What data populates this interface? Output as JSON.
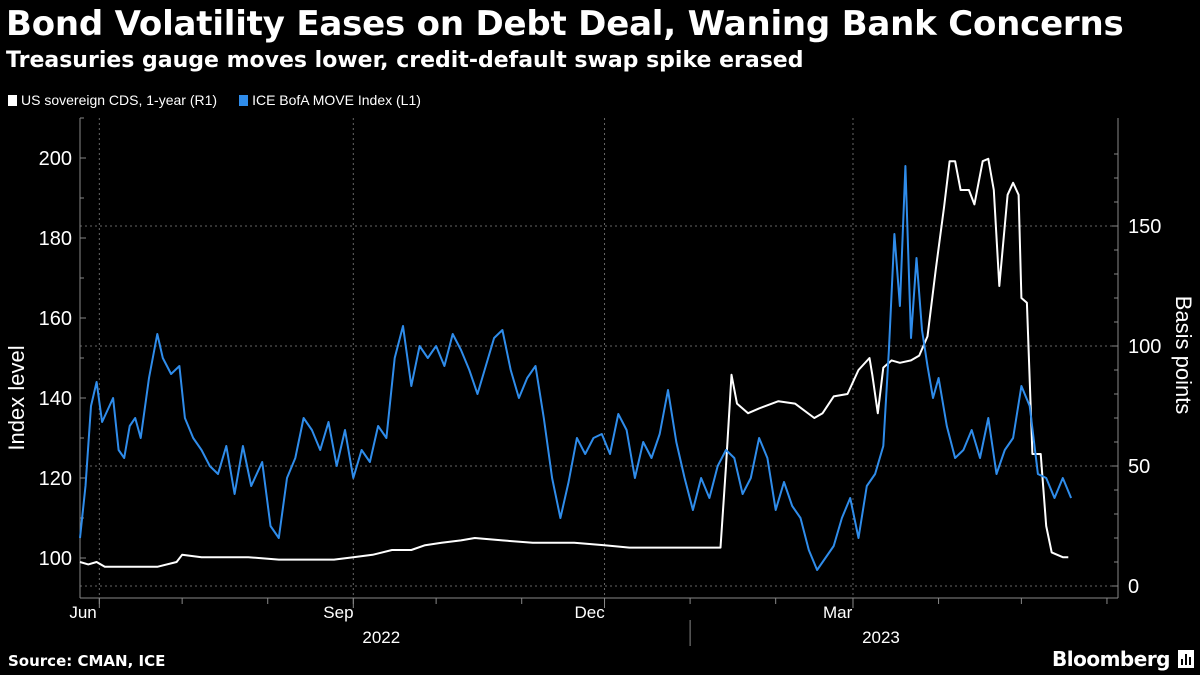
{
  "chart_data": {
    "type": "line",
    "title": "Bond Volatility Eases on Debt Deal, Waning Bank Concerns",
    "subtitle": "Treasuries gauge moves lower, credit-default swap spike erased",
    "ylabel_left": "Index level",
    "ylabel_right": "Basis points",
    "ylim_left": [
      90,
      210
    ],
    "ylim_right": [
      -5,
      195
    ],
    "yticks_left": [
      100,
      120,
      140,
      160,
      180,
      200
    ],
    "yticks_right": [
      0,
      50,
      100,
      150
    ],
    "x_range": [
      "2022-05-25",
      "2023-06-05"
    ],
    "month_ticks": [
      {
        "date": "2022-06-01",
        "label": "Jun"
      },
      {
        "date": "2022-09-01",
        "label": "Sep"
      },
      {
        "date": "2022-12-01",
        "label": "Dec"
      },
      {
        "date": "2023-03-01",
        "label": "Mar"
      }
    ],
    "year_labels": [
      {
        "date": "2022-09-01",
        "label": "2022"
      },
      {
        "date": "2023-03-01",
        "label": "2023"
      }
    ],
    "series": [
      {
        "name": "US sovereign CDS, 1-year (R1)",
        "axis": "right",
        "color": "#ffffff",
        "points": [
          [
            "2022-05-25",
            10
          ],
          [
            "2022-05-28",
            9
          ],
          [
            "2022-05-31",
            10
          ],
          [
            "2022-06-03",
            8
          ],
          [
            "2022-06-08",
            8
          ],
          [
            "2022-06-15",
            8
          ],
          [
            "2022-06-22",
            8
          ],
          [
            "2022-06-29",
            10
          ],
          [
            "2022-07-01",
            13
          ],
          [
            "2022-07-08",
            12
          ],
          [
            "2022-07-15",
            12
          ],
          [
            "2022-07-25",
            12
          ],
          [
            "2022-08-05",
            11
          ],
          [
            "2022-08-15",
            11
          ],
          [
            "2022-08-25",
            11
          ],
          [
            "2022-09-01",
            12
          ],
          [
            "2022-09-08",
            13
          ],
          [
            "2022-09-15",
            15
          ],
          [
            "2022-09-22",
            15
          ],
          [
            "2022-09-27",
            17
          ],
          [
            "2022-10-03",
            18
          ],
          [
            "2022-10-10",
            19
          ],
          [
            "2022-10-15",
            20
          ],
          [
            "2022-10-25",
            19
          ],
          [
            "2022-11-05",
            18
          ],
          [
            "2022-11-20",
            18
          ],
          [
            "2022-12-01",
            17
          ],
          [
            "2022-12-10",
            16
          ],
          [
            "2022-12-20",
            16
          ],
          [
            "2022-12-30",
            16
          ],
          [
            "2023-01-05",
            16
          ],
          [
            "2023-01-12",
            16
          ],
          [
            "2023-01-14",
            50
          ],
          [
            "2023-01-16",
            88
          ],
          [
            "2023-01-18",
            76
          ],
          [
            "2023-01-22",
            72
          ],
          [
            "2023-01-26",
            74
          ],
          [
            "2023-02-02",
            77
          ],
          [
            "2023-02-08",
            76
          ],
          [
            "2023-02-15",
            70
          ],
          [
            "2023-02-18",
            72
          ],
          [
            "2023-02-22",
            79
          ],
          [
            "2023-02-27",
            80
          ],
          [
            "2023-03-03",
            90
          ],
          [
            "2023-03-07",
            95
          ],
          [
            "2023-03-08",
            88
          ],
          [
            "2023-03-10",
            72
          ],
          [
            "2023-03-12",
            91
          ],
          [
            "2023-03-15",
            94
          ],
          [
            "2023-03-18",
            93
          ],
          [
            "2023-03-22",
            94
          ],
          [
            "2023-03-25",
            96
          ],
          [
            "2023-03-28",
            104
          ],
          [
            "2023-03-31",
            132
          ],
          [
            "2023-04-03",
            158
          ],
          [
            "2023-04-05",
            177
          ],
          [
            "2023-04-07",
            177
          ],
          [
            "2023-04-09",
            165
          ],
          [
            "2023-04-12",
            165
          ],
          [
            "2023-04-14",
            159
          ],
          [
            "2023-04-17",
            177
          ],
          [
            "2023-04-19",
            178
          ],
          [
            "2023-04-21",
            165
          ],
          [
            "2023-04-23",
            125
          ],
          [
            "2023-04-26",
            163
          ],
          [
            "2023-04-28",
            168
          ],
          [
            "2023-04-30",
            163
          ],
          [
            "2023-05-01",
            120
          ],
          [
            "2023-05-03",
            118
          ],
          [
            "2023-05-05",
            55
          ],
          [
            "2023-05-08",
            55
          ],
          [
            "2023-05-10",
            25
          ],
          [
            "2023-05-12",
            14
          ],
          [
            "2023-05-16",
            12
          ],
          [
            "2023-05-18",
            12
          ]
        ]
      },
      {
        "name": "ICE BofA MOVE Index  (L1)",
        "axis": "left",
        "color": "#2f8cea",
        "points": [
          [
            "2022-05-25",
            105
          ],
          [
            "2022-05-27",
            118
          ],
          [
            "2022-05-29",
            138
          ],
          [
            "2022-05-31",
            144
          ],
          [
            "2022-06-02",
            134
          ],
          [
            "2022-06-04",
            137
          ],
          [
            "2022-06-06",
            140
          ],
          [
            "2022-06-08",
            127
          ],
          [
            "2022-06-10",
            125
          ],
          [
            "2022-06-12",
            133
          ],
          [
            "2022-06-14",
            135
          ],
          [
            "2022-06-16",
            130
          ],
          [
            "2022-06-19",
            145
          ],
          [
            "2022-06-22",
            156
          ],
          [
            "2022-06-24",
            150
          ],
          [
            "2022-06-27",
            146
          ],
          [
            "2022-06-30",
            148
          ],
          [
            "2022-07-02",
            135
          ],
          [
            "2022-07-05",
            130
          ],
          [
            "2022-07-08",
            127
          ],
          [
            "2022-07-11",
            123
          ],
          [
            "2022-07-14",
            121
          ],
          [
            "2022-07-17",
            128
          ],
          [
            "2022-07-20",
            116
          ],
          [
            "2022-07-23",
            128
          ],
          [
            "2022-07-26",
            118
          ],
          [
            "2022-07-30",
            124
          ],
          [
            "2022-08-02",
            108
          ],
          [
            "2022-08-05",
            105
          ],
          [
            "2022-08-08",
            120
          ],
          [
            "2022-08-11",
            125
          ],
          [
            "2022-08-14",
            135
          ],
          [
            "2022-08-17",
            132
          ],
          [
            "2022-08-20",
            127
          ],
          [
            "2022-08-23",
            134
          ],
          [
            "2022-08-26",
            123
          ],
          [
            "2022-08-29",
            132
          ],
          [
            "2022-09-01",
            120
          ],
          [
            "2022-09-04",
            127
          ],
          [
            "2022-09-07",
            124
          ],
          [
            "2022-09-10",
            133
          ],
          [
            "2022-09-13",
            130
          ],
          [
            "2022-09-16",
            150
          ],
          [
            "2022-09-19",
            158
          ],
          [
            "2022-09-22",
            143
          ],
          [
            "2022-09-25",
            153
          ],
          [
            "2022-09-28",
            150
          ],
          [
            "2022-10-01",
            153
          ],
          [
            "2022-10-04",
            148
          ],
          [
            "2022-10-07",
            156
          ],
          [
            "2022-10-10",
            152
          ],
          [
            "2022-10-13",
            147
          ],
          [
            "2022-10-16",
            141
          ],
          [
            "2022-10-19",
            148
          ],
          [
            "2022-10-22",
            155
          ],
          [
            "2022-10-25",
            157
          ],
          [
            "2022-10-28",
            147
          ],
          [
            "2022-10-31",
            140
          ],
          [
            "2022-11-03",
            145
          ],
          [
            "2022-11-06",
            148
          ],
          [
            "2022-11-09",
            135
          ],
          [
            "2022-11-12",
            120
          ],
          [
            "2022-11-15",
            110
          ],
          [
            "2022-11-18",
            119
          ],
          [
            "2022-11-21",
            130
          ],
          [
            "2022-11-24",
            126
          ],
          [
            "2022-11-27",
            130
          ],
          [
            "2022-11-30",
            131
          ],
          [
            "2022-12-03",
            126
          ],
          [
            "2022-12-06",
            136
          ],
          [
            "2022-12-09",
            132
          ],
          [
            "2022-12-12",
            120
          ],
          [
            "2022-12-15",
            129
          ],
          [
            "2022-12-18",
            125
          ],
          [
            "2022-12-21",
            131
          ],
          [
            "2022-12-24",
            142
          ],
          [
            "2022-12-27",
            129
          ],
          [
            "2022-12-30",
            120
          ],
          [
            "2023-01-02",
            112
          ],
          [
            "2023-01-05",
            120
          ],
          [
            "2023-01-08",
            115
          ],
          [
            "2023-01-11",
            123
          ],
          [
            "2023-01-14",
            127
          ],
          [
            "2023-01-17",
            125
          ],
          [
            "2023-01-20",
            116
          ],
          [
            "2023-01-23",
            120
          ],
          [
            "2023-01-26",
            130
          ],
          [
            "2023-01-29",
            125
          ],
          [
            "2023-02-01",
            112
          ],
          [
            "2023-02-04",
            119
          ],
          [
            "2023-02-07",
            113
          ],
          [
            "2023-02-10",
            110
          ],
          [
            "2023-02-13",
            102
          ],
          [
            "2023-02-16",
            97
          ],
          [
            "2023-02-19",
            100
          ],
          [
            "2023-02-22",
            103
          ],
          [
            "2023-02-25",
            110
          ],
          [
            "2023-02-28",
            115
          ],
          [
            "2023-03-03",
            105
          ],
          [
            "2023-03-06",
            118
          ],
          [
            "2023-03-09",
            121
          ],
          [
            "2023-03-12",
            128
          ],
          [
            "2023-03-14",
            152
          ],
          [
            "2023-03-16",
            181
          ],
          [
            "2023-03-18",
            163
          ],
          [
            "2023-03-20",
            198
          ],
          [
            "2023-03-22",
            155
          ],
          [
            "2023-03-24",
            175
          ],
          [
            "2023-03-26",
            157
          ],
          [
            "2023-03-28",
            148
          ],
          [
            "2023-03-30",
            140
          ],
          [
            "2023-04-01",
            145
          ],
          [
            "2023-04-04",
            133
          ],
          [
            "2023-04-07",
            125
          ],
          [
            "2023-04-10",
            127
          ],
          [
            "2023-04-13",
            132
          ],
          [
            "2023-04-16",
            125
          ],
          [
            "2023-04-19",
            135
          ],
          [
            "2023-04-22",
            121
          ],
          [
            "2023-04-25",
            127
          ],
          [
            "2023-04-28",
            130
          ],
          [
            "2023-05-01",
            143
          ],
          [
            "2023-05-04",
            138
          ],
          [
            "2023-05-07",
            121
          ],
          [
            "2023-05-10",
            120
          ],
          [
            "2023-05-13",
            115
          ],
          [
            "2023-05-16",
            120
          ],
          [
            "2023-05-19",
            115
          ]
        ]
      }
    ]
  },
  "legend": [
    {
      "label": "US sovereign CDS, 1-year (R1)",
      "color": "#ffffff"
    },
    {
      "label": "ICE BofA MOVE Index  (L1)",
      "color": "#2f8cea"
    }
  ],
  "footer": {
    "source": "Source: CMAN, ICE",
    "brand": "Bloomberg"
  }
}
